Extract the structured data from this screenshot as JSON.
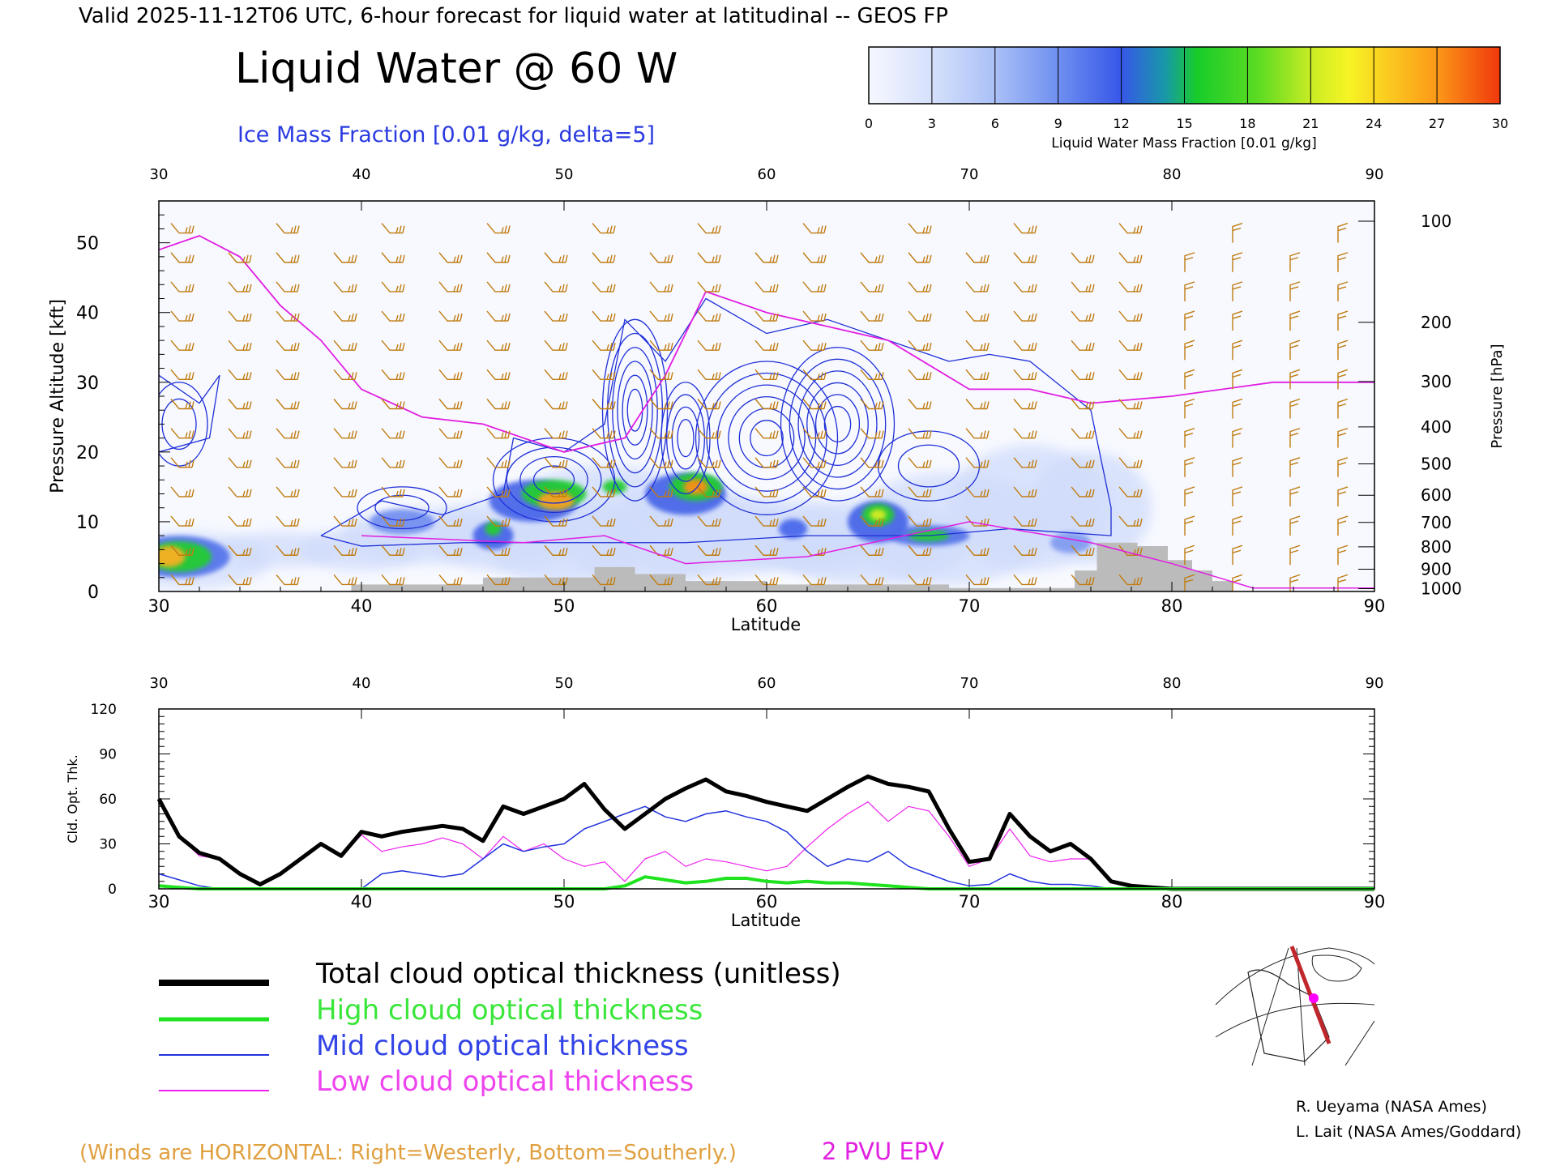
{
  "header": {
    "valid_line": "Valid 2025-11-12T06 UTC, 6-hour forecast for liquid water at latitudinal -- GEOS FP",
    "title": "Liquid Water @ 60 W",
    "subtitle": "Ice Mass Fraction [0.01 g/kg, delta=5]"
  },
  "colorbar": {
    "ticks": [
      "0",
      "3",
      "6",
      "9",
      "12",
      "15",
      "18",
      "21",
      "24",
      "27",
      "30"
    ],
    "label": "Liquid Water Mass Fraction [0.01 g/kg]",
    "colors": [
      "#f4f7ff",
      "#c9d7fb",
      "#9cb6f6",
      "#6d8ef0",
      "#3b5cea",
      "#12a7b6",
      "#1ed23a",
      "#8ee22a",
      "#f2f224",
      "#f9b12a",
      "#f8760c",
      "#ee2d12"
    ]
  },
  "top_panel": {
    "x_ticks": [
      "30",
      "40",
      "50",
      "60",
      "70",
      "80",
      "90"
    ],
    "x_label": "Latitude",
    "y_label": "Pressure Altitude [kft]",
    "y_ticks": [
      "0",
      "10",
      "20",
      "30",
      "40",
      "50"
    ],
    "y2_label": "Pressure [hPa]",
    "y2_ticks": [
      "100",
      "200",
      "300",
      "400",
      "500",
      "600",
      "700",
      "800",
      "900",
      "1000"
    ]
  },
  "bottom_panel": {
    "x_ticks": [
      "30",
      "40",
      "50",
      "60",
      "70",
      "80",
      "90"
    ],
    "x_label": "Latitude",
    "y_label": "Cld. Opt. Thk.",
    "y_ticks": [
      "0",
      "30",
      "60",
      "90",
      "120"
    ]
  },
  "legend": {
    "items": [
      {
        "label": "Total cloud optical thickness (unitless)",
        "color": "#000000"
      },
      {
        "label": "High cloud optical thickness",
        "color": "#1ee31e"
      },
      {
        "label": "Mid cloud optical thickness",
        "color": "#2233dd"
      },
      {
        "label": "Low cloud optical thickness",
        "color": "#ee22ee"
      }
    ]
  },
  "credits": {
    "line1": "R. Ueyama (NASA Ames)",
    "line2": "L. Lait (NASA Ames/Goddard)"
  },
  "footer": {
    "winds_note": "(Winds are HORIZONTAL: Right=Westerly, Bottom=Southerly.)",
    "pvu_label": "2 PVU EPV"
  },
  "colors": {
    "wind_barbs": "#c07c10",
    "pvu": "#e11ee1",
    "ice_contour": "#1f2fd6",
    "terrain": "#bbbbbb"
  },
  "chart_data": [
    {
      "type": "heatmap",
      "title": "Liquid Water @ 60 W",
      "xlabel": "Latitude",
      "ylabel": "Pressure Altitude [kft]",
      "xlim": [
        30,
        90
      ],
      "ylim": [
        0,
        56
      ],
      "series": [
        {
          "name": "Ice Mass Fraction [0.01 g/kg, delta=5]",
          "type": "contour"
        },
        {
          "name": "2 PVU EPV",
          "type": "line",
          "x": [
            30,
            32,
            34,
            36,
            38,
            40,
            43,
            46,
            50,
            53,
            55,
            57,
            60,
            63,
            66,
            70,
            73,
            76,
            80,
            85,
            90
          ],
          "y": [
            49,
            51,
            48,
            41,
            36,
            29,
            25,
            24,
            20,
            22,
            31,
            43,
            40,
            38,
            36,
            29,
            29,
            27,
            28,
            30,
            30
          ]
        }
      ],
      "liquid_maxima": [
        {
          "lat": 30.5,
          "alt_kft": 5,
          "value": 27
        },
        {
          "lat": 49.5,
          "alt_kft": 13,
          "value": 27
        },
        {
          "lat": 56.5,
          "alt_kft": 15,
          "value": 26
        },
        {
          "lat": 65.5,
          "alt_kft": 10,
          "value": 20
        }
      ]
    },
    {
      "type": "line",
      "xlabel": "Latitude",
      "ylabel": "Cld. Opt. Thk.",
      "xlim": [
        30,
        90
      ],
      "ylim": [
        0,
        120
      ],
      "x": [
        30,
        31,
        32,
        33,
        34,
        35,
        36,
        37,
        38,
        39,
        40,
        41,
        42,
        43,
        44,
        45,
        46,
        47,
        48,
        49,
        50,
        51,
        52,
        53,
        54,
        55,
        56,
        57,
        58,
        59,
        60,
        61,
        62,
        63,
        64,
        65,
        66,
        67,
        68,
        69,
        70,
        71,
        72,
        73,
        74,
        75,
        76,
        77,
        78,
        79,
        80,
        85,
        90
      ],
      "series": [
        {
          "name": "Total cloud optical thickness (unitless)",
          "values": [
            60,
            35,
            24,
            20,
            10,
            3,
            10,
            20,
            30,
            22,
            38,
            35,
            38,
            40,
            42,
            40,
            32,
            55,
            50,
            55,
            60,
            70,
            53,
            40,
            50,
            60,
            67,
            73,
            65,
            62,
            58,
            55,
            52,
            60,
            68,
            75,
            70,
            68,
            65,
            40,
            18,
            20,
            50,
            35,
            25,
            30,
            20,
            5,
            2,
            1,
            0,
            0,
            0
          ]
        },
        {
          "name": "High cloud optical thickness",
          "values": [
            2,
            1,
            0,
            0,
            0,
            0,
            0,
            0,
            0,
            0,
            0,
            0,
            0,
            0,
            0,
            0,
            0,
            0,
            0,
            0,
            0,
            0,
            0,
            2,
            8,
            6,
            4,
            5,
            7,
            7,
            5,
            4,
            5,
            4,
            4,
            3,
            2,
            1,
            0,
            0,
            0,
            0,
            0,
            0,
            0,
            0,
            0,
            0,
            0,
            0,
            0,
            0,
            0
          ]
        },
        {
          "name": "Mid cloud optical thickness",
          "values": [
            10,
            6,
            2,
            0,
            0,
            0,
            0,
            0,
            0,
            0,
            0,
            10,
            12,
            10,
            8,
            10,
            20,
            30,
            25,
            28,
            30,
            40,
            45,
            50,
            55,
            48,
            45,
            50,
            52,
            48,
            45,
            38,
            25,
            15,
            20,
            18,
            25,
            15,
            10,
            5,
            2,
            3,
            10,
            5,
            3,
            3,
            2,
            0,
            0,
            0,
            0,
            0,
            0
          ]
        },
        {
          "name": "Low cloud optical thickness",
          "values": [
            58,
            35,
            22,
            20,
            10,
            3,
            10,
            20,
            30,
            22,
            36,
            25,
            28,
            30,
            34,
            30,
            20,
            35,
            25,
            30,
            20,
            15,
            18,
            5,
            20,
            25,
            15,
            20,
            18,
            15,
            12,
            15,
            28,
            40,
            50,
            58,
            45,
            55,
            52,
            35,
            15,
            20,
            40,
            22,
            18,
            20,
            20,
            5,
            1,
            0,
            0,
            0,
            0
          ]
        }
      ]
    }
  ]
}
